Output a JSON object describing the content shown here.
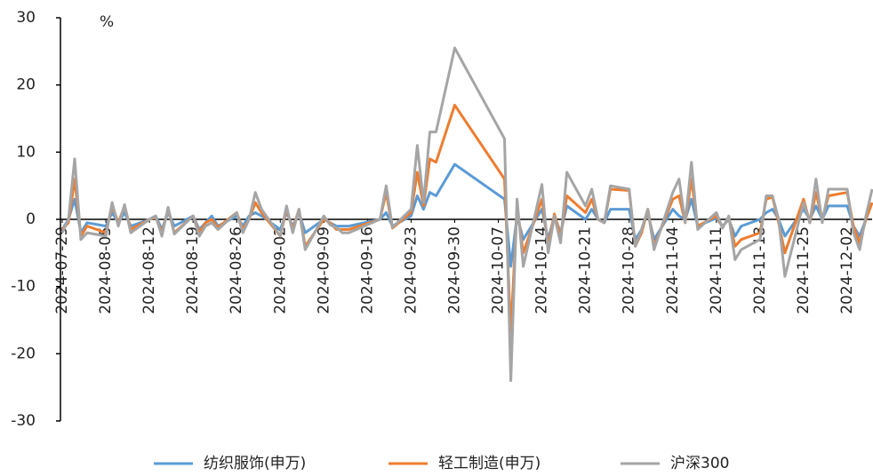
{
  "chart_data": {
    "type": "line",
    "unit_label": "%",
    "x": [
      "2024-07-29",
      "2024-07-30",
      "2024-07-31",
      "2024-08-01",
      "2024-08-02",
      "2024-08-05",
      "2024-08-06",
      "2024-08-07",
      "2024-08-08",
      "2024-08-09",
      "2024-08-12",
      "2024-08-13",
      "2024-08-14",
      "2024-08-15",
      "2024-08-16",
      "2024-08-19",
      "2024-08-20",
      "2024-08-21",
      "2024-08-22",
      "2024-08-23",
      "2024-08-26",
      "2024-08-27",
      "2024-08-28",
      "2024-08-29",
      "2024-08-30",
      "2024-09-02",
      "2024-09-03",
      "2024-09-04",
      "2024-09-05",
      "2024-09-06",
      "2024-09-09",
      "2024-09-10",
      "2024-09-11",
      "2024-09-12",
      "2024-09-13",
      "2024-09-18",
      "2024-09-19",
      "2024-09-20",
      "2024-09-23",
      "2024-09-24",
      "2024-09-25",
      "2024-09-26",
      "2024-09-27",
      "2024-09-30",
      "2024-10-08",
      "2024-10-09",
      "2024-10-10",
      "2024-10-11",
      "2024-10-14",
      "2024-10-15",
      "2024-10-16",
      "2024-10-17",
      "2024-10-18",
      "2024-10-21",
      "2024-10-22",
      "2024-10-23",
      "2024-10-24",
      "2024-10-25",
      "2024-10-28",
      "2024-10-29",
      "2024-10-30",
      "2024-10-31",
      "2024-11-01",
      "2024-11-04",
      "2024-11-05",
      "2024-11-06",
      "2024-11-07",
      "2024-11-08",
      "2024-11-11",
      "2024-11-12",
      "2024-11-13",
      "2024-11-14",
      "2024-11-15",
      "2024-11-18",
      "2024-11-19",
      "2024-11-20",
      "2024-11-21",
      "2024-11-22",
      "2024-11-25",
      "2024-11-26",
      "2024-11-27",
      "2024-11-28",
      "2024-11-29",
      "2024-12-02",
      "2024-12-03",
      "2024-12-04",
      "2024-12-05",
      "2024-12-06"
    ],
    "series": [
      {
        "name": "纺织服饰(申万)",
        "color": "#5b9bd5",
        "values": [
          -1.5,
          0,
          3,
          -2,
          -0.5,
          -1,
          1,
          -0.5,
          1,
          -1,
          0,
          0.5,
          -1.5,
          1,
          -1,
          0.5,
          -1.5,
          -0.5,
          0.5,
          -1,
          0.5,
          -1,
          0.5,
          1,
          0.5,
          -1.5,
          1,
          -1,
          1,
          -2,
          0,
          -0.5,
          -1,
          -1,
          -1,
          0,
          1,
          -1,
          0.5,
          3.5,
          1.5,
          4,
          3.5,
          8.2,
          3,
          -7,
          0.5,
          -3,
          1.5,
          -3,
          0.5,
          -2,
          2,
          0,
          1.5,
          0,
          -0.5,
          1.5,
          1.5,
          -3,
          -1.5,
          1,
          -3,
          1.5,
          0.5,
          0,
          3,
          -1,
          0.2,
          -1,
          0,
          -2.5,
          -1,
          0,
          1,
          1.5,
          0,
          -2.5,
          1.5,
          0,
          2,
          0,
          2,
          2,
          -1,
          -2.5,
          0,
          2.5
        ]
      },
      {
        "name": "轻工制造(申万)",
        "color": "#ed7d31",
        "values": [
          -1.5,
          -0.5,
          6,
          -2.5,
          -1,
          -2,
          2,
          -0.5,
          2,
          -1.5,
          0,
          0.3,
          -2,
          1.5,
          -2,
          0.5,
          -2,
          -0.5,
          0,
          -1.2,
          1,
          -1.5,
          0,
          2.5,
          1,
          -2.5,
          1.5,
          -1.5,
          1.5,
          -4,
          0,
          -0.5,
          -1.5,
          -1.5,
          -1.5,
          0,
          4,
          -1.3,
          1,
          7,
          2,
          9,
          8.5,
          17,
          6,
          -17,
          2,
          -5,
          3,
          -4,
          0.8,
          -2.5,
          3.5,
          1,
          3,
          0,
          -0.5,
          4.5,
          4.3,
          -4,
          -2,
          1.5,
          -4,
          3,
          3.5,
          -0.5,
          6,
          -1,
          0.5,
          -1.2,
          0.3,
          -4,
          -3,
          -2,
          3,
          3.3,
          -0.5,
          -5,
          3,
          -0.5,
          4,
          0,
          3.5,
          4,
          -1,
          -3.5,
          0,
          2.5
        ]
      },
      {
        "name": "沪深300",
        "color": "#a5a5a5",
        "values": [
          -2,
          0,
          9,
          -3,
          -2,
          -2.5,
          2.5,
          -1,
          2.2,
          -2,
          0,
          0.5,
          -2.5,
          1.8,
          -2.2,
          0.5,
          -2.5,
          -1,
          -0.5,
          -1.5,
          1,
          -2,
          0,
          4,
          1.5,
          -2.5,
          2,
          -2,
          1.5,
          -4.5,
          0.5,
          -0.8,
          -1.2,
          -2,
          -2,
          0,
          5,
          -1.2,
          1.5,
          11,
          2.5,
          13,
          13,
          25.5,
          12,
          -24,
          3,
          -7,
          5.2,
          -5,
          0.5,
          -3.5,
          7,
          2,
          4.5,
          0,
          -0.5,
          5,
          4.5,
          -4,
          -1.5,
          1.5,
          -4.5,
          4,
          6,
          -0.5,
          8.5,
          -1.5,
          1,
          -1.3,
          0.5,
          -6,
          -4.5,
          -3,
          3.5,
          3.5,
          0,
          -8.5,
          2.5,
          -0.5,
          6,
          -0.5,
          4.5,
          4.5,
          -2,
          -4.5,
          0.5,
          4.5
        ]
      }
    ],
    "xlim": [
      "2024-07-29",
      "2024-12-06"
    ],
    "xticks": [
      "2024-07-29",
      "2024-08-05",
      "2024-08-12",
      "2024-08-19",
      "2024-08-26",
      "2024-09-02",
      "2024-09-09",
      "2024-09-16",
      "2024-09-23",
      "2024-09-30",
      "2024-10-07",
      "2024-10-14",
      "2024-10-21",
      "2024-10-28",
      "2024-11-04",
      "2024-11-11",
      "2024-11-18",
      "2024-11-25",
      "2024-12-02"
    ],
    "ylim": [
      -30,
      30
    ],
    "yticks": [
      -30,
      -20,
      -10,
      0,
      10,
      20,
      30
    ],
    "legend": "bottom"
  }
}
